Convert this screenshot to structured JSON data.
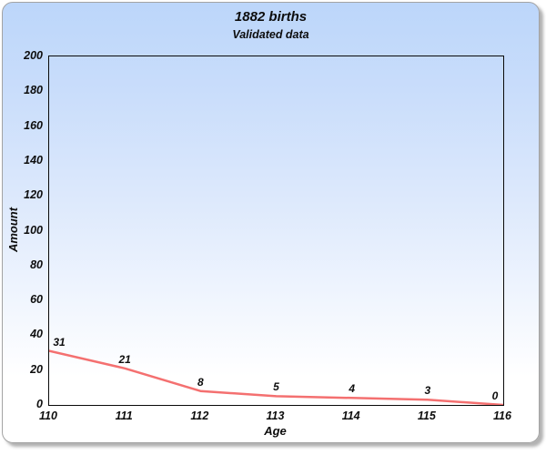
{
  "chart_data": {
    "type": "line",
    "title": "1882 births",
    "subtitle": "Validated data",
    "xlabel": "Age",
    "ylabel": "Amount",
    "x": [
      110,
      111,
      112,
      113,
      114,
      115,
      116
    ],
    "values": [
      31,
      21,
      8,
      5,
      4,
      3,
      0
    ],
    "point_labels": [
      "31",
      "21",
      "8",
      "5",
      "4",
      "3",
      "0"
    ],
    "x_ticks": [
      110,
      111,
      112,
      113,
      114,
      115,
      116
    ],
    "y_ticks": [
      0,
      20,
      40,
      60,
      80,
      100,
      120,
      140,
      160,
      180,
      200
    ],
    "xlim": [
      110,
      116
    ],
    "ylim": [
      0,
      200
    ],
    "grid": false,
    "legend": "none",
    "line_color": "#f47070",
    "text_color": "#0d0d0d",
    "plot_frame_color": "#0a0a0a",
    "background_gradient_top": "#bcd6fa",
    "background_gradient_bottom": "#ffffff"
  }
}
